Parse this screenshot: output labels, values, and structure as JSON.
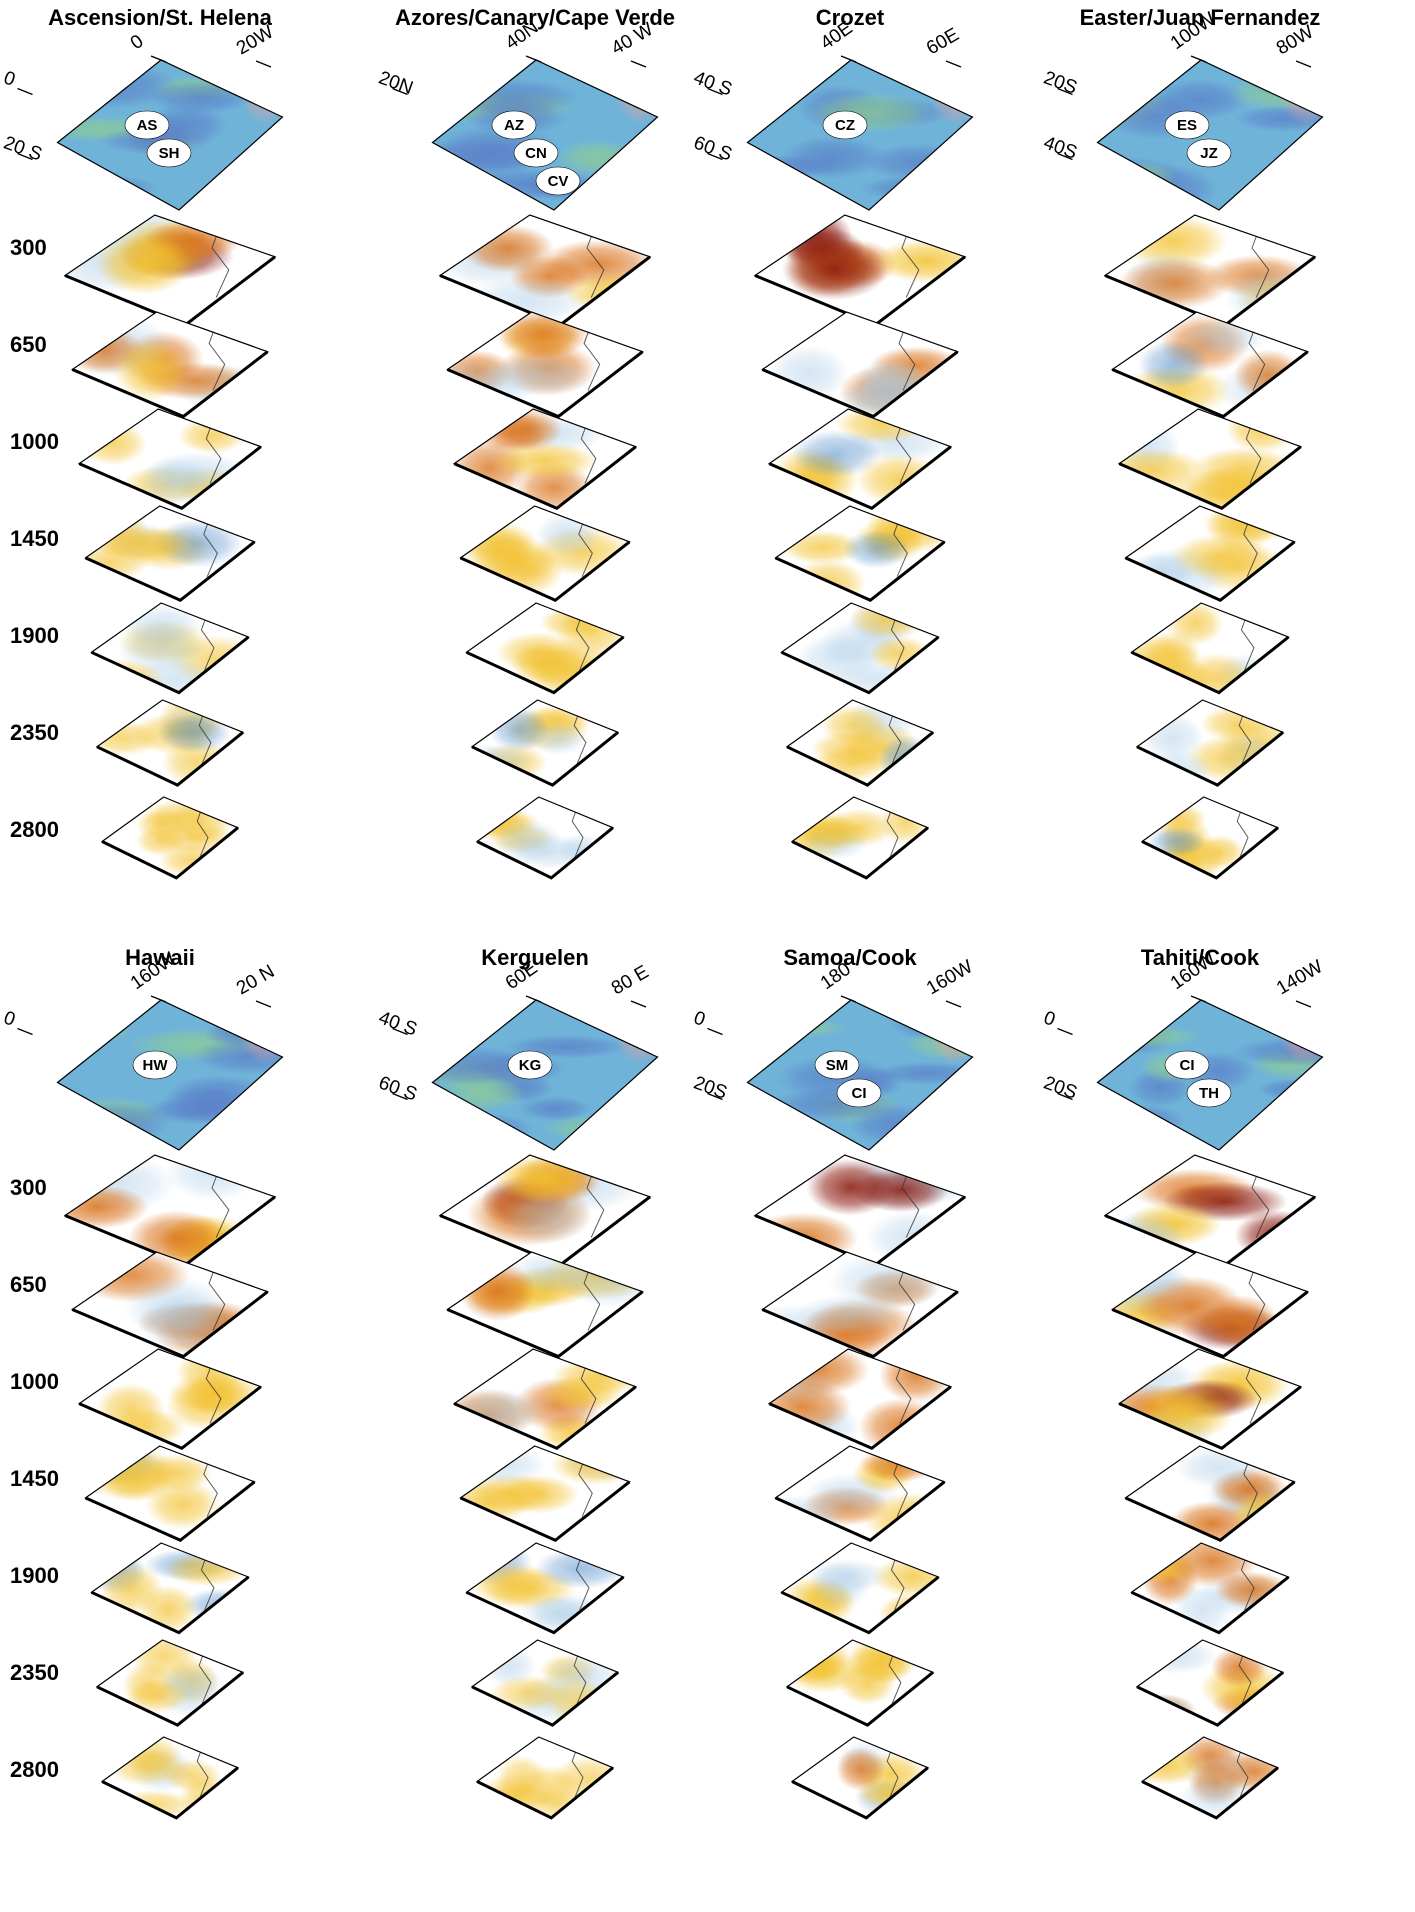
{
  "figure": {
    "depths": [
      "300",
      "650",
      "1000",
      "1450",
      "1900",
      "2350",
      "2800"
    ],
    "colors": {
      "slow_strong": "#8b1a0e",
      "slow": "#d9731c",
      "slow_weak": "#f2c12e",
      "neutral": "#ffffff",
      "fast_weak": "#a9cbe6",
      "fast": "#3b7fc4",
      "fast_strong": "#1b3b8f",
      "topo_ocean": "#6fb3d9",
      "topo_ridge": "#8fcf8f",
      "topo_high": "#e8a0a0"
    },
    "panels": [
      {
        "title": "Ascension/St. Helena",
        "coord_labels": [
          "0",
          "20W",
          "0",
          "20 S"
        ],
        "hotspots": [
          "AS",
          "SH"
        ],
        "slow_strength": [
          0.9,
          0.6,
          0.35,
          0.3,
          0.25,
          0.25,
          0.3
        ]
      },
      {
        "title": "Azores/Canary/Cape Verde",
        "coord_labels": [
          "40N",
          "40 W",
          "20N"
        ],
        "hotspots": [
          "AZ",
          "CN",
          "CV"
        ],
        "slow_strength": [
          0.7,
          0.65,
          0.6,
          0.45,
          0.35,
          0.3,
          0.35
        ]
      },
      {
        "title": "Crozet",
        "coord_labels": [
          "40E",
          "60E",
          "40 S",
          "60 S"
        ],
        "hotspots": [
          "CZ"
        ],
        "slow_strength": [
          0.8,
          0.7,
          0.45,
          0.45,
          0.4,
          0.35,
          0.3
        ]
      },
      {
        "title": "Easter/Juan Fernandez",
        "coord_labels": [
          "100W",
          "80W",
          "20S",
          "40S"
        ],
        "hotspots": [
          "ES",
          "JZ"
        ],
        "slow_strength": [
          0.6,
          0.55,
          0.5,
          0.35,
          0.35,
          0.35,
          0.5
        ]
      },
      {
        "title": "Hawaii",
        "coord_labels": [
          "160W",
          "20 N",
          "0"
        ],
        "hotspots": [
          "HW"
        ],
        "slow_strength": [
          0.8,
          0.6,
          0.4,
          0.45,
          0.4,
          0.25,
          0.2
        ]
      },
      {
        "title": "Kerguelen",
        "coord_labels": [
          "60E",
          "80 E",
          "40 S",
          "60 S"
        ],
        "hotspots": [
          "KG"
        ],
        "slow_strength": [
          0.95,
          0.9,
          0.6,
          0.45,
          0.4,
          0.2,
          0.15
        ]
      },
      {
        "title": "Samoa/Cook",
        "coord_labels": [
          "180",
          "160W",
          "0",
          "20S"
        ],
        "hotspots": [
          "SM",
          "CI"
        ],
        "slow_strength": [
          0.8,
          0.6,
          0.7,
          0.65,
          0.5,
          0.5,
          0.6
        ]
      },
      {
        "title": "Tahiti/Cook",
        "coord_labels": [
          "160W",
          "140W",
          "0",
          "20S"
        ],
        "hotspots": [
          "CI",
          "TH"
        ],
        "slow_strength": [
          0.8,
          0.85,
          0.9,
          0.85,
          0.7,
          0.65,
          0.6
        ]
      }
    ]
  }
}
